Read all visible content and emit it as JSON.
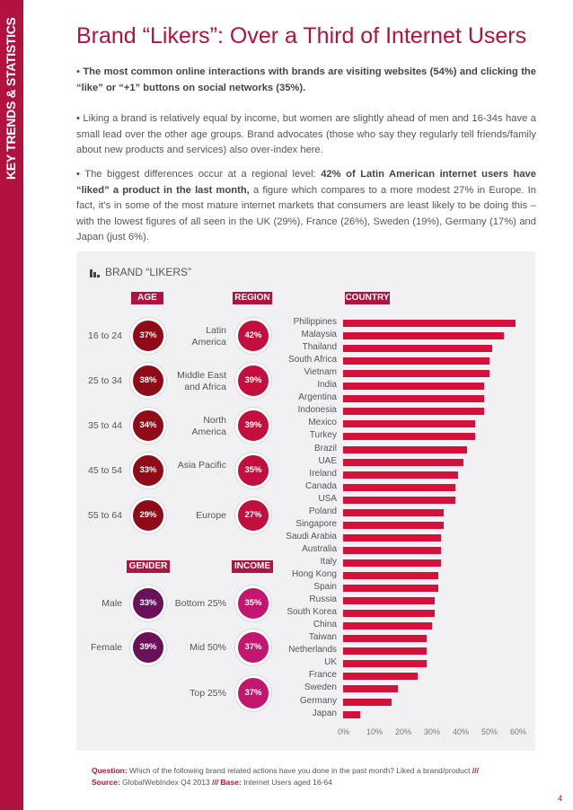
{
  "sidebar": {
    "label": "KEY TRENDS & STATISTICS"
  },
  "title": "Brand “Likers”: Over a Third of Internet Users",
  "paragraphs": {
    "p1_bold": "The most common online interactions with brands are visiting websites (54%) and clicking the “like” or “+1” buttons on social networks (35%).",
    "p2": "Liking a brand is relatively equal by income, but women are slightly ahead of men and 16-34s have a small lead over the other age groups. Brand advocates (those who say they regularly tell friends/family about new products and services) also over-index here.",
    "p3_a": "The biggest differences occur at a regional level: ",
    "p3_bold": "42% of Latin American internet users have “liked” a product in the last month,",
    "p3_b": " a figure which compares to a more modest 27% in Europe. In fact, it’s in some of the most mature internet markets that consumers are least likely to be doing this – with the lowest figures of all seen in the UK (29%), France (26%), Sweden (19%), Germany (17%) and Japan (just 6%)."
  },
  "panel": {
    "title": "BRAND “LIKERS”",
    "headers": {
      "age": "AGE",
      "region": "REGION",
      "country": "COUNTRY",
      "gender": "GENDER",
      "income": "INCOME"
    },
    "age": [
      {
        "label": "16 to 24",
        "value": "37%"
      },
      {
        "label": "25 to 34",
        "value": "38%"
      },
      {
        "label": "35 to 44",
        "value": "34%"
      },
      {
        "label": "45 to 54",
        "value": "33%"
      },
      {
        "label": "55 to 64",
        "value": "29%"
      }
    ],
    "region": [
      {
        "label": "Latin America",
        "value": "42%"
      },
      {
        "label": "Middle East and Africa",
        "value": "39%"
      },
      {
        "label": "North America",
        "value": "39%"
      },
      {
        "label": "Asia Pacific",
        "value": "35%"
      },
      {
        "label": "Europe",
        "value": "27%"
      }
    ],
    "gender": [
      {
        "label": "Male",
        "value": "33%"
      },
      {
        "label": "Female",
        "value": "39%"
      }
    ],
    "income": [
      {
        "label": "Bottom 25%",
        "value": "35%"
      },
      {
        "label": "Mid 50%",
        "value": "37%"
      },
      {
        "label": "Top 25%",
        "value": "37%"
      }
    ]
  },
  "chart_data": {
    "type": "bar",
    "orientation": "horizontal",
    "categories": [
      "Philippines",
      "Malaysia",
      "Thailand",
      "South Africa",
      "Vietnam",
      "India",
      "Argentina",
      "Indonesia",
      "Mexico",
      "Turkey",
      "Brazil",
      "UAE",
      "Ireland",
      "Canada",
      "USA",
      "Poland",
      "Singapore",
      "Saudi Arabia",
      "Australia",
      "Italy",
      "Hong Kong",
      "Spain",
      "Russia",
      "South Korea",
      "China",
      "Taiwan",
      "Netherlands",
      "UK",
      "France",
      "Sweden",
      "Germany",
      "Japan"
    ],
    "values": [
      60,
      56,
      52,
      51,
      51,
      49,
      49,
      49,
      46,
      46,
      43,
      42,
      40,
      39,
      39,
      35,
      35,
      34,
      34,
      34,
      33,
      33,
      32,
      32,
      31,
      29,
      29,
      29,
      26,
      19,
      17,
      6
    ],
    "xlim": [
      0,
      60
    ],
    "xticks": [
      "0%",
      "10%",
      "20%",
      "30%",
      "40%",
      "50%",
      "60%"
    ],
    "color": "#d3113b"
  },
  "footer": {
    "question_label": "Question:",
    "question_text": "Which of the following brand related actions have you done in the past month? Liked a brand/product",
    "sep": "///",
    "source_label": "Source:",
    "source_text": "GlobalWebIndex Q4 2013",
    "base_label": "Base:",
    "base_text": "Internet Users aged 16-64"
  },
  "page_number": "4",
  "colors": {
    "brand": "#b2123f",
    "age": "#8e0b17",
    "region": "#c20f3d",
    "gender": "#6a1259",
    "income": "#c2166f"
  }
}
